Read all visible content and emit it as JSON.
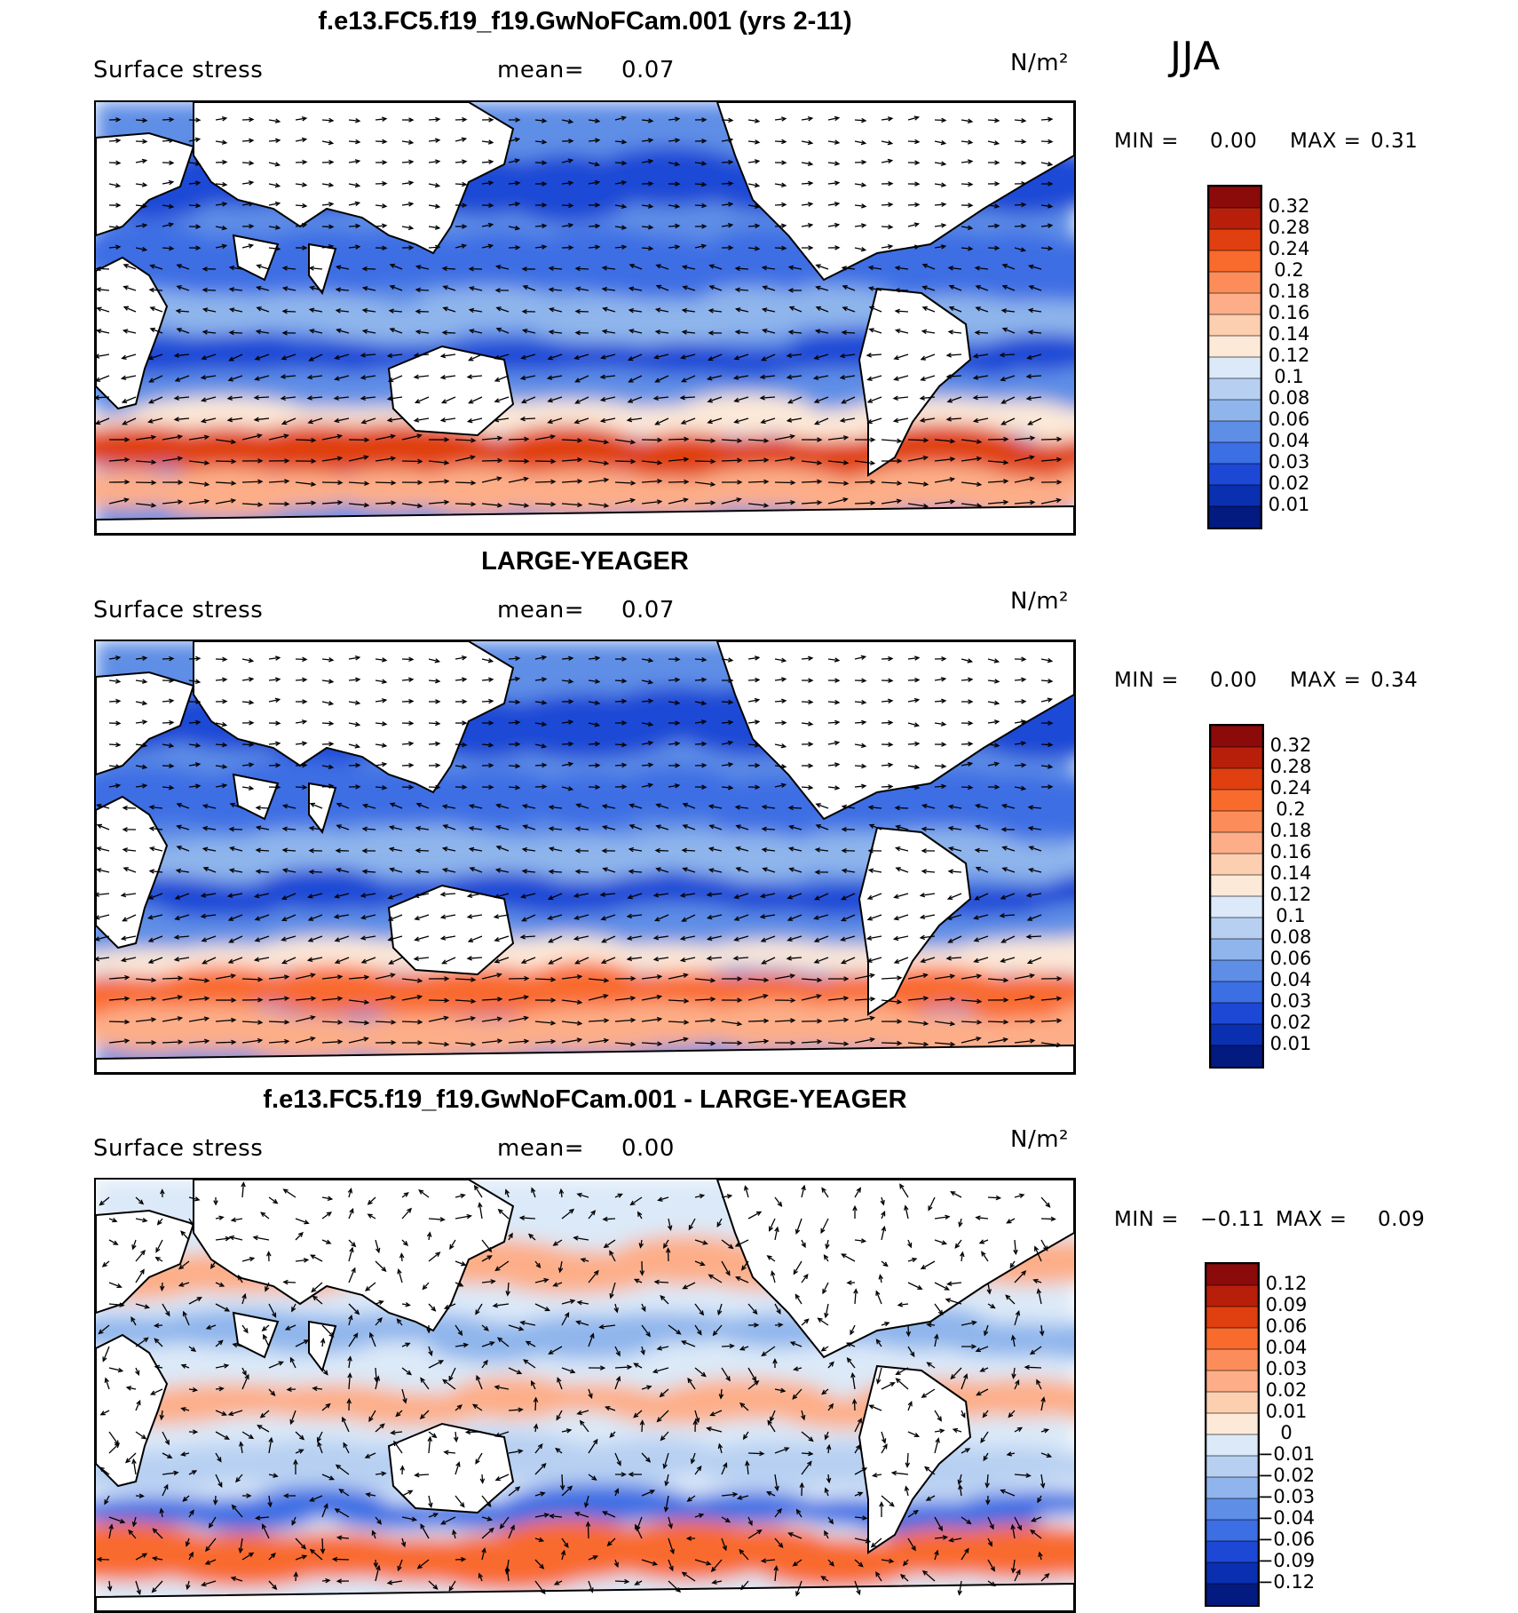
{
  "season": "JJA",
  "panels": [
    {
      "title": "f.e13.FC5.f19_f19.GwNoFCam.001 (yrs 2-11)",
      "variable": "Surface stress",
      "mean_label": "mean=",
      "mean_value": "0.07",
      "units": "N/m²",
      "min_label": "MIN =",
      "min_value": "0.00",
      "max_label": "MAX =",
      "max_value": "0.31"
    },
    {
      "title": "LARGE-YEAGER",
      "variable": "Surface stress",
      "mean_label": "mean=",
      "mean_value": "0.07",
      "units": "N/m²",
      "min_label": "MIN =",
      "min_value": "0.00",
      "max_label": "MAX =",
      "max_value": "0.34"
    },
    {
      "title": "f.e13.FC5.f19_f19.GwNoFCam.001 - LARGE-YEAGER",
      "variable": "Surface stress",
      "mean_label": "mean=",
      "mean_value": "0.00",
      "units": "N/m²",
      "min_label": "MIN =",
      "min_value": "−0.11",
      "max_label": "MAX =",
      "max_value": "0.09"
    }
  ],
  "chart_data": [
    {
      "type": "heatmap",
      "title": "f.e13.FC5.f19_f19.GwNoFCam.001 (yrs 2-11)",
      "field": "Surface stress",
      "units": "N/m²",
      "mean": 0.07,
      "min": 0.0,
      "max": 0.31,
      "colorbar_levels": [
        "0.32",
        "0.28",
        "0.24",
        "0.2",
        "0.18",
        "0.16",
        "0.14",
        "0.12",
        "0.1",
        "0.08",
        "0.06",
        "0.04",
        "0.03",
        "0.02",
        "0.01"
      ],
      "colorbar_colors": [
        "#8b0a0a",
        "#b71f0a",
        "#e0400f",
        "#f96a2d",
        "#fc8d5a",
        "#fdae88",
        "#fccfb0",
        "#fde9d8",
        "#dbe9f8",
        "#b7d0f2",
        "#8fb5ec",
        "#5f8ee6",
        "#3c6ee4",
        "#1d48d6",
        "#0a2fb0",
        "#031a80"
      ],
      "vectors": true
    },
    {
      "type": "heatmap",
      "title": "LARGE-YEAGER",
      "field": "Surface stress",
      "units": "N/m²",
      "mean": 0.07,
      "min": 0.0,
      "max": 0.34,
      "colorbar_levels": [
        "0.32",
        "0.28",
        "0.24",
        "0.2",
        "0.18",
        "0.16",
        "0.14",
        "0.12",
        "0.1",
        "0.08",
        "0.06",
        "0.04",
        "0.03",
        "0.02",
        "0.01"
      ],
      "colorbar_colors": [
        "#8b0a0a",
        "#b71f0a",
        "#e0400f",
        "#f96a2d",
        "#fc8d5a",
        "#fdae88",
        "#fccfb0",
        "#fde9d8",
        "#dbe9f8",
        "#b7d0f2",
        "#8fb5ec",
        "#5f8ee6",
        "#3c6ee4",
        "#1d48d6",
        "#0a2fb0",
        "#031a80"
      ],
      "vectors": true
    },
    {
      "type": "heatmap",
      "title": "f.e13.FC5.f19_f19.GwNoFCam.001 - LARGE-YEAGER",
      "field": "Surface stress",
      "units": "N/m²",
      "mean": 0.0,
      "min": -0.11,
      "max": 0.09,
      "colorbar_levels": [
        "0.12",
        "0.09",
        "0.06",
        "0.04",
        "0.03",
        "0.02",
        "0.01",
        "0",
        "−0.01",
        "−0.02",
        "−0.03",
        "−0.04",
        "−0.06",
        "−0.09",
        "−0.12"
      ],
      "colorbar_colors": [
        "#8b0a0a",
        "#b71f0a",
        "#e0400f",
        "#f96a2d",
        "#fc8d5a",
        "#fdae88",
        "#fccfb0",
        "#fde9d8",
        "#dbe9f8",
        "#b7d0f2",
        "#8fb5ec",
        "#5f8ee6",
        "#3c6ee4",
        "#1d48d6",
        "#0a2fb0",
        "#031a80"
      ],
      "vectors": true
    }
  ]
}
